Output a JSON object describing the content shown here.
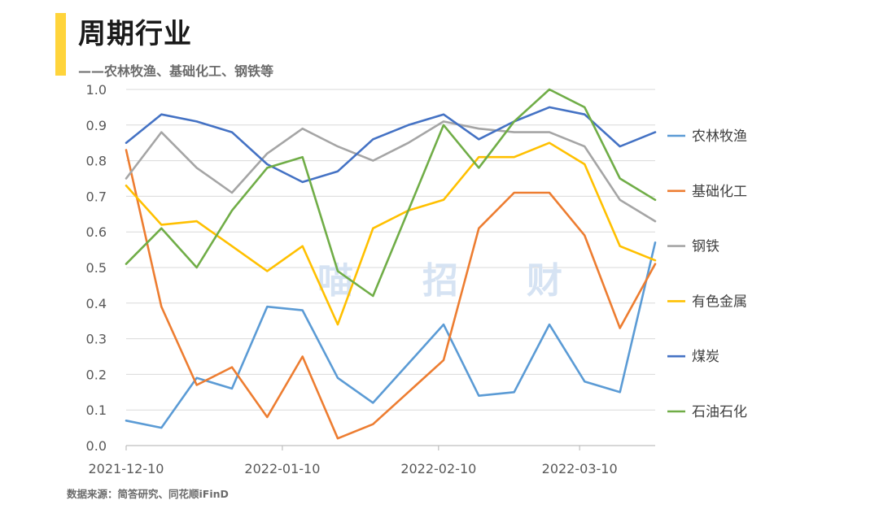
{
  "header": {
    "title": "周期行业",
    "subtitle": "——农林牧渔、基础化工、钢铁等",
    "accent_color": "#ffd43b"
  },
  "footer": {
    "source": "数据来源：简答研究、同花顺iFinD"
  },
  "watermark": [
    "喵",
    "招",
    "财"
  ],
  "chart_data": {
    "type": "line",
    "x": [
      "2021-12-10",
      "2021-12-17",
      "2021-12-24",
      "2021-12-31",
      "2022-01-07",
      "2022-01-14",
      "2022-01-21",
      "2022-01-28",
      "2022-02-04",
      "2022-02-11",
      "2022-02-18",
      "2022-02-25",
      "2022-03-04",
      "2022-03-11",
      "2022-03-18",
      "2022-03-25"
    ],
    "x_tick_labels": [
      "2021-12-10",
      "2022-01-10",
      "2022-02-10",
      "2022-03-10"
    ],
    "ylim": [
      0,
      1.0
    ],
    "y_ticks": [
      "0.0",
      "0.1",
      "0.2",
      "0.3",
      "0.4",
      "0.5",
      "0.6",
      "0.7",
      "0.8",
      "0.9",
      "1.0"
    ],
    "grid": true,
    "legend_position": "right",
    "series": [
      {
        "name": "农林牧渔",
        "color": "#5b9bd5",
        "values": [
          0.07,
          0.05,
          0.19,
          0.16,
          0.39,
          0.38,
          0.19,
          0.12,
          0.23,
          0.34,
          0.14,
          0.15,
          0.34,
          0.18,
          0.15,
          0.57
        ]
      },
      {
        "name": "基础化工",
        "color": "#ed7d31",
        "values": [
          0.83,
          0.39,
          0.17,
          0.22,
          0.08,
          0.25,
          0.02,
          0.06,
          0.15,
          0.24,
          0.61,
          0.71,
          0.71,
          0.59,
          0.33,
          0.51
        ]
      },
      {
        "name": "钢铁",
        "color": "#a5a5a5",
        "values": [
          0.75,
          0.88,
          0.78,
          0.71,
          0.82,
          0.89,
          0.84,
          0.8,
          0.85,
          0.91,
          0.89,
          0.88,
          0.88,
          0.84,
          0.69,
          0.63
        ]
      },
      {
        "name": "有色金属",
        "color": "#ffc000",
        "values": [
          0.73,
          0.62,
          0.63,
          0.56,
          0.49,
          0.56,
          0.34,
          0.61,
          0.66,
          0.69,
          0.81,
          0.81,
          0.85,
          0.79,
          0.56,
          0.52
        ]
      },
      {
        "name": "煤炭",
        "color": "#4472c4",
        "values": [
          0.85,
          0.93,
          0.91,
          0.88,
          0.79,
          0.74,
          0.77,
          0.86,
          0.9,
          0.93,
          0.86,
          0.91,
          0.95,
          0.93,
          0.84,
          0.88
        ]
      },
      {
        "name": "石油石化",
        "color": "#70ad47",
        "values": [
          0.51,
          0.61,
          0.5,
          0.66,
          0.78,
          0.81,
          0.49,
          0.42,
          0.66,
          0.9,
          0.78,
          0.91,
          1.0,
          0.95,
          0.75,
          0.69
        ]
      }
    ]
  }
}
